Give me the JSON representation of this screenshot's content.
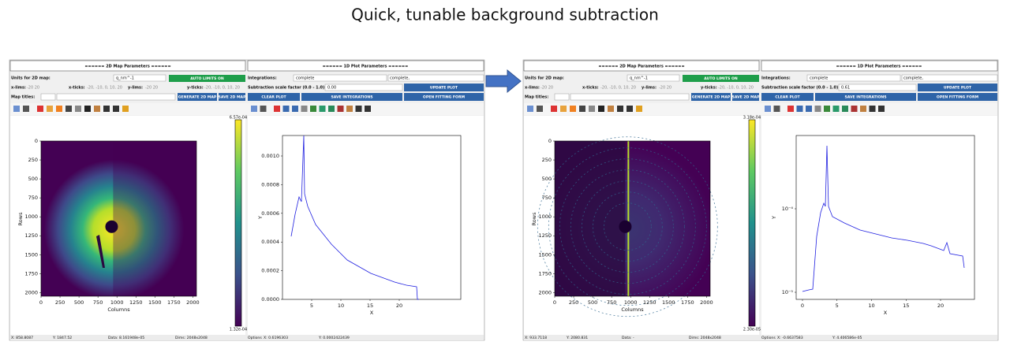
{
  "title": "Quick, tunable background subtraction",
  "panels": [
    {
      "map_params": {
        "header": "====== 2D Map Parameters ======",
        "units_label": "Units for 2D map:",
        "units_value": "q_nm^-1",
        "auto_limits": "AUTO LIMITS ON",
        "xlims_label": "x-lims:",
        "xlims_value": "-20        20",
        "xticks_label": "x-ticks:",
        "xticks_value": "-20, -10, 0, 10, 20",
        "ylims_label": "y-lims:",
        "ylims_value": "-20        20",
        "yticks_label": "y-ticks:",
        "yticks_value": "-20, -10, 0, 10, 20",
        "map_titles_label": "Map titles:",
        "generate": "GENERATE 2D MAP",
        "save": "SAVE 2D MAP"
      },
      "plot_params": {
        "header": "====== 1D Plot Parameters ======",
        "integrations_label": "Integrations:",
        "integrations_value": "complete",
        "integrations_text": "complete,",
        "scale_label": "Subtraction scale factor (0.0 - 1.0):",
        "scale_value": "0.00",
        "update": "UPDATE PLOT",
        "clear": "CLEAR PLOT",
        "save": "SAVE INTEGRATIONS",
        "fitting": "OPEN FITTING FORM"
      },
      "map": {
        "x_label": "Columns",
        "y_label": "Rows",
        "xticks": [
          0,
          250,
          500,
          750,
          1000,
          1250,
          1500,
          1750,
          2000
        ],
        "yticks": [
          0,
          250,
          500,
          750,
          1000,
          1250,
          1500,
          1750,
          2000
        ],
        "colorbar_max": "6.57e-04",
        "colorbar_min": "1.32e-04"
      },
      "plot": {
        "x_label": "X",
        "y_label": "Y",
        "xticks": [
          5,
          10,
          15,
          20
        ],
        "yticks": [
          "0.0000",
          "0.0002",
          "0.0004",
          "0.0006",
          "0.0008",
          "0.0010"
        ]
      },
      "map_status": {
        "x": "X:  858.8087",
        "y": "Y:  1847.52",
        "data": "Data:  8.161948e-05",
        "dims": "Dims:  2048x2048"
      },
      "plot_status": {
        "options": "Options",
        "x": "X:  0.6196303",
        "y": "Y:  0.0002422439"
      }
    },
    {
      "map_params": {
        "header": "====== 2D Map Parameters ======",
        "units_label": "Units for 2D map:",
        "units_value": "q_nm^-1",
        "auto_limits": "AUTO LIMITS ON",
        "xlims_label": "x-lims:",
        "xlims_value": "-20        20",
        "xticks_label": "x-ticks:",
        "xticks_value": "-20, -10, 0, 10, 20",
        "ylims_label": "y-lims:",
        "ylims_value": "-20        20",
        "yticks_label": "y-ticks:",
        "yticks_value": "-20, -10, 0, 10, 20",
        "map_titles_label": "Map titles:",
        "generate": "GENERATE 2D MAP",
        "save": "SAVE 2D MAP"
      },
      "plot_params": {
        "header": "====== 1D Plot Parameters ======",
        "integrations_label": "Integrations:",
        "integrations_value": "complete",
        "integrations_text": "complete,",
        "scale_label": "Subtraction scale factor (0.0 - 1.0):",
        "scale_value": "0.61",
        "update": "UPDATE PLOT",
        "clear": "CLEAR PLOT",
        "save": "SAVE INTEGRATIONS",
        "fitting": "OPEN FITTING FORM"
      },
      "map": {
        "x_label": "Columns",
        "y_label": "Rows",
        "xticks": [
          0,
          250,
          500,
          750,
          1000,
          1250,
          1500,
          1750,
          2000
        ],
        "yticks": [
          0,
          250,
          500,
          750,
          1000,
          1250,
          1500,
          1750,
          2000
        ],
        "colorbar_max": "3.18e-04",
        "colorbar_min": "2.30e-05"
      },
      "plot": {
        "x_label": "X",
        "y_label": "Y",
        "xticks": [
          0,
          5,
          10,
          15,
          20
        ],
        "yticks": [
          "10⁻⁵",
          "10⁻⁴"
        ]
      },
      "map_status": {
        "x": "X:  933.7118",
        "y": "Y:  2080.831",
        "data": "Data:  -",
        "dims": "Dims:  2048x2048"
      },
      "plot_status": {
        "options": "Options",
        "x": "X:  -0.6637583",
        "y": "Y:  4.406586e-05"
      }
    }
  ]
}
